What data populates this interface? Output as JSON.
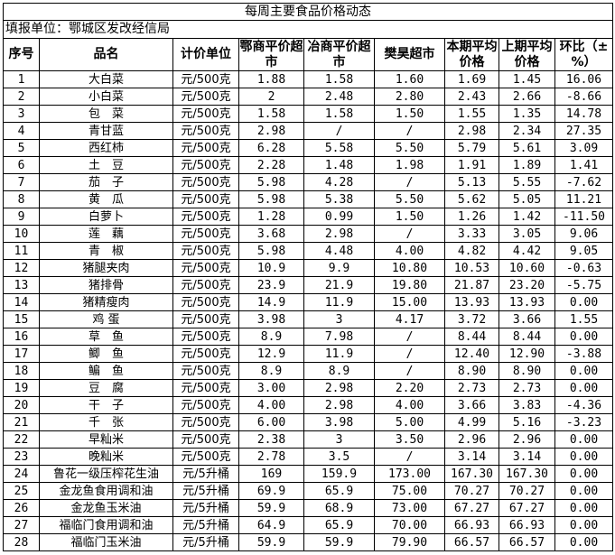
{
  "title": "每周主要食品价格动态",
  "reporter": "填报单位：鄂城区发改经信局",
  "headers": [
    "序号",
    "品名",
    "计价单位",
    "鄂商平价超市",
    "冶商平价超市",
    "樊昊超市",
    "本期平均价格",
    "上期平均价格",
    "环比（±%）"
  ],
  "rows": [
    [
      "1",
      "大白菜",
      "元/500克",
      "1.88",
      "1.58",
      "1.60",
      "1.69",
      "1.45",
      "16.06"
    ],
    [
      "2",
      "小白菜",
      "元/500克",
      "2",
      "2.48",
      "2.80",
      "2.43",
      "2.66",
      "-8.66"
    ],
    [
      "3",
      "包　菜",
      "元/500克",
      "1.58",
      "1.58",
      "1.50",
      "1.55",
      "1.35",
      "14.78"
    ],
    [
      "4",
      "青甘蓝",
      "元/500克",
      "2.98",
      "/",
      "/",
      "2.98",
      "2.34",
      "27.35"
    ],
    [
      "5",
      "西红柿",
      "元/500克",
      "6.28",
      "5.58",
      "5.50",
      "5.79",
      "5.61",
      "3.09"
    ],
    [
      "6",
      "土　豆",
      "元/500克",
      "2.28",
      "1.48",
      "1.98",
      "1.91",
      "1.89",
      "1.41"
    ],
    [
      "7",
      "茄　子",
      "元/500克",
      "5.98",
      "4.28",
      "/",
      "5.13",
      "5.55",
      "-7.62"
    ],
    [
      "8",
      "黄　瓜",
      "元/500克",
      "5.98",
      "5.38",
      "5.50",
      "5.62",
      "5.05",
      "11.21"
    ],
    [
      "9",
      "白萝卜",
      "元/500克",
      "1.28",
      "0.99",
      "1.50",
      "1.26",
      "1.42",
      "-11.50"
    ],
    [
      "10",
      "莲　藕",
      "元/500克",
      "3.68",
      "2.98",
      "/",
      "3.33",
      "3.05",
      "9.06"
    ],
    [
      "11",
      "青　椒",
      "元/500克",
      "5.98",
      "4.48",
      "4.00",
      "4.82",
      "4.42",
      "9.05"
    ],
    [
      "12",
      "猪腿夹肉",
      "元/500克",
      "10.9",
      "9.9",
      "10.80",
      "10.53",
      "10.60",
      "-0.63"
    ],
    [
      "13",
      "猪排骨",
      "元/500克",
      "23.9",
      "21.9",
      "19.80",
      "21.87",
      "23.20",
      "-5.75"
    ],
    [
      "14",
      "猪精瘦肉",
      "元/500克",
      "14.9",
      "11.9",
      "15.00",
      "13.93",
      "13.93",
      "0.00"
    ],
    [
      "15",
      "鸡 蛋",
      "元/500克",
      "3.98",
      "3",
      "4.17",
      "3.72",
      "3.66",
      "1.55"
    ],
    [
      "16",
      "草　鱼",
      "元/500克",
      "8.9",
      "7.98",
      "/",
      "8.44",
      "8.44",
      "0.00"
    ],
    [
      "17",
      "鲫　鱼",
      "元/500克",
      "12.9",
      "11.9",
      "/",
      "12.40",
      "12.90",
      "-3.88"
    ],
    [
      "18",
      "鳊　鱼",
      "元/500克",
      "8.9",
      "8.9",
      "/",
      "8.90",
      "8.90",
      "0.00"
    ],
    [
      "19",
      "豆　腐",
      "元/500克",
      "3.00",
      "2.98",
      "2.20",
      "2.73",
      "2.73",
      "0.00"
    ],
    [
      "20",
      "干　子",
      "元/500克",
      "4.00",
      "2.98",
      "4.00",
      "3.66",
      "3.83",
      "-4.36"
    ],
    [
      "21",
      "千　张",
      "元/500克",
      "6.00",
      "3.98",
      "5.00",
      "4.99",
      "5.16",
      "-3.23"
    ],
    [
      "22",
      "早籼米",
      "元/500克",
      "2.38",
      "3",
      "3.50",
      "2.96",
      "2.96",
      "0.00"
    ],
    [
      "23",
      "晚籼米",
      "元/500克",
      "2.78",
      "3.5",
      "/",
      "3.14",
      "3.14",
      "0.00"
    ],
    [
      "24",
      "鲁花一级压榨花生油",
      "元/5升桶",
      "169",
      "159.9",
      "173.00",
      "167.30",
      "167.30",
      "0.00"
    ],
    [
      "25",
      "金龙鱼食用调和油",
      "元/5升桶",
      "69.9",
      "65.9",
      "75.00",
      "70.27",
      "70.27",
      "0.00"
    ],
    [
      "26",
      "金龙鱼玉米油",
      "元/5升桶",
      "59.9",
      "68.9",
      "73.00",
      "67.27",
      "67.27",
      "0.00"
    ],
    [
      "27",
      "福临门食用调和油",
      "元/5升桶",
      "64.9",
      "65.9",
      "70.00",
      "66.93",
      "66.93",
      "0.00"
    ],
    [
      "28",
      "福临门玉米油",
      "元/5升桶",
      "59.9",
      "59.9",
      "79.90",
      "66.57",
      "66.57",
      "0.00"
    ]
  ]
}
